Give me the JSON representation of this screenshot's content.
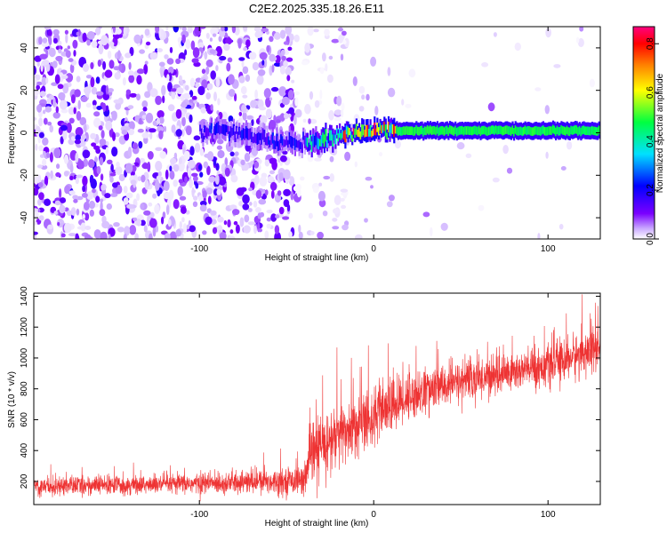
{
  "title": "C2E2.2025.335.18.26.E11",
  "chart_data": [
    {
      "type": "heatmap",
      "title": "C2E2.2025.335.18.26.E11",
      "xlabel": "Height of straight line (km)",
      "ylabel": "Frequency (Hz)",
      "xlim": [
        -195,
        130
      ],
      "ylim": [
        -50,
        50
      ],
      "xticks": [
        -100,
        0,
        100
      ],
      "xtick_labels": [
        "-100",
        "0",
        "100"
      ],
      "yticks": [
        -40,
        -20,
        0,
        20,
        40
      ],
      "ytick_labels": [
        "-40",
        "-20",
        "0",
        "20",
        "40"
      ],
      "colorbar": {
        "label": "Normalized spectral amplitude",
        "range": [
          0,
          0.87
        ],
        "ticks": [
          0.0,
          0.2,
          0.4,
          0.6,
          0.8
        ],
        "tick_labels": [
          "0.0",
          "0.2",
          "0.4",
          "0.6",
          "0.8"
        ],
        "colors": [
          "#ffffff",
          "#7a00ff",
          "#0000ff",
          "#00e0ff",
          "#00ff40",
          "#ffff00",
          "#ff8000",
          "#ff0000",
          "#ff0080"
        ]
      },
      "features": {
        "noise_region_x": [
          -195,
          -40
        ],
        "noise_amplitude": 0.1,
        "signal_start_x": -40,
        "signal_band_center_freq": [
          {
            "x": -85,
            "freq": 1
          },
          {
            "x": -70,
            "freq": -2
          },
          {
            "x": -50,
            "freq": -5
          },
          {
            "x": -30,
            "freq": -4
          },
          {
            "x": -15,
            "freq": 0
          },
          {
            "x": 0,
            "freq": 1
          },
          {
            "x": 20,
            "freq": 1
          },
          {
            "x": 130,
            "freq": 1
          }
        ],
        "signal_band_halfwidth_hz": 2,
        "peak_region_x": [
          -20,
          12
        ],
        "peak_amplitude": 0.85,
        "steady_band_amplitude": 0.45
      }
    },
    {
      "type": "line",
      "xlabel": "Height of straight line (km)",
      "ylabel": "SNR (10 * v/v)",
      "xlim": [
        -195,
        130
      ],
      "ylim": [
        50,
        1420
      ],
      "xticks": [
        -100,
        0,
        100
      ],
      "xtick_labels": [
        "-100",
        "0",
        "100"
      ],
      "yticks": [
        200,
        400,
        600,
        800,
        1000,
        1200,
        1400
      ],
      "ytick_labels": [
        "200",
        "400",
        "600",
        "800",
        "1000",
        "1200",
        "1400"
      ],
      "color": "#ee3333",
      "trend": {
        "x": [
          -195,
          -120,
          -60,
          -40,
          -35,
          -20,
          0,
          20,
          50,
          100,
          130
        ],
        "mean": [
          170,
          180,
          200,
          210,
          380,
          500,
          620,
          750,
          850,
          950,
          1070
        ],
        "spread": [
          70,
          70,
          90,
          100,
          260,
          240,
          220,
          180,
          150,
          150,
          170
        ]
      },
      "sample_count": 3000
    }
  ]
}
